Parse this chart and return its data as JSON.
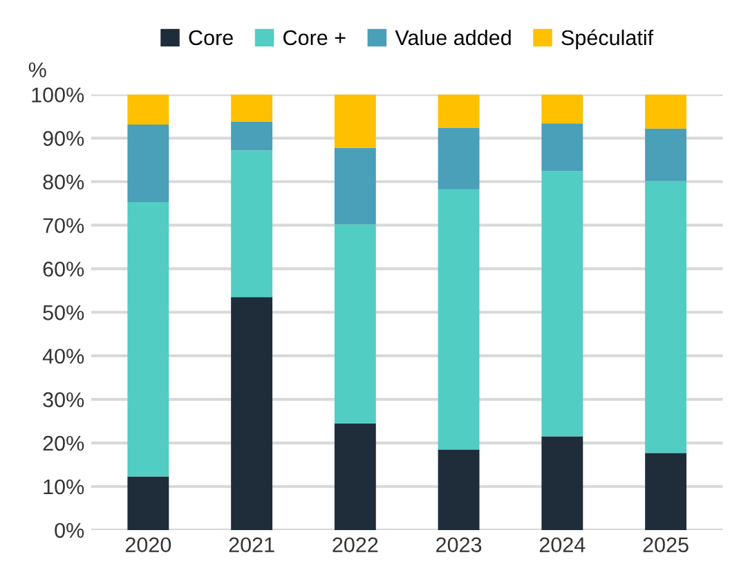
{
  "chart_data": {
    "type": "bar",
    "stacked": true,
    "ylabel": "%",
    "categories": [
      "2020",
      "2021",
      "2022",
      "2023",
      "2024",
      "2025"
    ],
    "series": [
      {
        "name": "Core",
        "color": "#1f2d3a",
        "values": [
          12.3,
          53.5,
          24.5,
          18.5,
          21.5,
          17.7
        ]
      },
      {
        "name": "Core +",
        "color": "#52cdc4",
        "values": [
          63.0,
          33.7,
          45.7,
          59.7,
          60.9,
          62.4
        ]
      },
      {
        "name": "Value added",
        "color": "#4a9fb9",
        "values": [
          17.8,
          6.6,
          17.6,
          14.2,
          11.0,
          12.1
        ]
      },
      {
        "name": "Spéculatif",
        "color": "#ffc000",
        "values": [
          6.9,
          6.2,
          12.2,
          7.6,
          6.6,
          7.8
        ]
      }
    ],
    "ylim": [
      0,
      100
    ],
    "yticks": [
      {
        "value": 0,
        "label": "0%"
      },
      {
        "value": 10,
        "label": "10%"
      },
      {
        "value": 20,
        "label": "20%"
      },
      {
        "value": 30,
        "label": "30%"
      },
      {
        "value": 40,
        "label": "40%"
      },
      {
        "value": 50,
        "label": "50%"
      },
      {
        "value": 60,
        "label": "60%"
      },
      {
        "value": 70,
        "label": "70%"
      },
      {
        "value": 80,
        "label": "80%"
      },
      {
        "value": 90,
        "label": "90%"
      },
      {
        "value": 100,
        "label": "100%"
      }
    ],
    "grid": "y",
    "legend": "top"
  }
}
